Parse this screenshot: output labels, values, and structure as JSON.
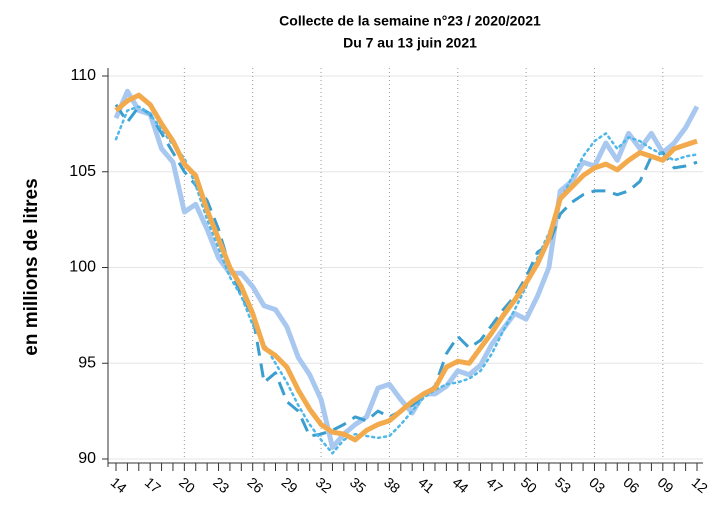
{
  "chart_data": {
    "type": "line",
    "title": "Collecte de la semaine n°23 / 2020/2021",
    "subtitle": "Du 7 au 13 juin 2021",
    "y_label": "en millions de litres",
    "categories": [
      "14",
      null,
      null,
      "17",
      null,
      null,
      "20",
      null,
      null,
      "23",
      null,
      null,
      "26",
      null,
      null,
      "29",
      null,
      null,
      "32",
      null,
      null,
      "35",
      null,
      null,
      "38",
      null,
      null,
      "41",
      null,
      null,
      "44",
      null,
      null,
      "47",
      null,
      null,
      "50",
      null,
      null,
      "53",
      null,
      null,
      "03",
      null,
      null,
      "06",
      null,
      null,
      "09",
      null,
      null,
      "12"
    ],
    "series": [
      {
        "color": "#a9c8f0",
        "style": "solid",
        "values": [
          107.8,
          109.2,
          108.2,
          108.0,
          106.2,
          105.5,
          102.9,
          103.3,
          102.0,
          100.5,
          99.7,
          99.7,
          99.0,
          98.0,
          97.8,
          96.9,
          95.3,
          94.4,
          93.1,
          90.6,
          91.3,
          91.8,
          92.2,
          93.7,
          93.9,
          93.1,
          92.4,
          93.4,
          93.4,
          93.8,
          94.6,
          94.4,
          94.9,
          96.0,
          96.8,
          97.6,
          97.3,
          98.5,
          100.0,
          104.0,
          104.5,
          105.5,
          105.3,
          106.5,
          105.6,
          107.0,
          106.2,
          107.0,
          106.0,
          106.5,
          107.3,
          108.4
        ]
      },
      {
        "color": "#3b9ecf",
        "style": "dashed",
        "values": [
          108.5,
          107.6,
          108.4,
          108.0,
          107.0,
          106.0,
          105.0,
          104.3,
          103.5,
          102.0,
          100.0,
          98.5,
          97.5,
          94.0,
          94.5,
          93.0,
          92.5,
          91.2,
          91.3,
          91.5,
          91.8,
          92.2,
          92.0,
          92.5,
          92.2,
          92.5,
          92.8,
          93.3,
          93.8,
          95.5,
          96.4,
          95.8,
          96.2,
          97.0,
          97.8,
          98.5,
          99.5,
          100.8,
          101.2,
          102.8,
          103.4,
          103.8,
          104.0,
          104.0,
          103.8,
          104.0,
          104.5,
          105.8,
          106.0,
          105.2,
          105.3,
          105.5
        ]
      },
      {
        "color": "#4fb8e8",
        "style": "dotted",
        "values": [
          106.7,
          108.2,
          108.4,
          108.0,
          107.2,
          106.4,
          105.7,
          104.3,
          102.5,
          101.0,
          99.5,
          98.5,
          97.0,
          96.0,
          95.0,
          94.0,
          92.8,
          91.8,
          91.0,
          90.3,
          91.0,
          91.3,
          91.2,
          91.1,
          91.2,
          91.8,
          92.5,
          93.2,
          93.6,
          93.9,
          94.0,
          94.2,
          94.6,
          95.5,
          96.7,
          97.8,
          99.0,
          100.5,
          101.8,
          103.5,
          104.7,
          105.8,
          106.6,
          107.0,
          106.2,
          106.8,
          106.6,
          106.2,
          105.9,
          105.6,
          105.8,
          105.9
        ]
      },
      {
        "color": "#f2aa4c",
        "style": "solid",
        "values": [
          108.2,
          108.7,
          109.0,
          108.5,
          107.5,
          106.6,
          105.4,
          104.8,
          103.0,
          101.5,
          100.0,
          99.0,
          97.6,
          95.8,
          95.4,
          94.8,
          93.6,
          92.6,
          91.8,
          91.4,
          91.3,
          91.0,
          91.5,
          91.8,
          92.0,
          92.5,
          93.0,
          93.4,
          93.7,
          94.8,
          95.1,
          95.0,
          95.8,
          96.6,
          97.5,
          98.3,
          99.2,
          100.2,
          101.5,
          103.6,
          104.2,
          104.8,
          105.2,
          105.4,
          105.1,
          105.6,
          106.0,
          105.8,
          105.6,
          106.2,
          106.4,
          106.6
        ]
      }
    ],
    "ylim": [
      90,
      110
    ],
    "yticks": [
      90,
      95,
      100,
      105,
      110
    ],
    "grid": true
  }
}
